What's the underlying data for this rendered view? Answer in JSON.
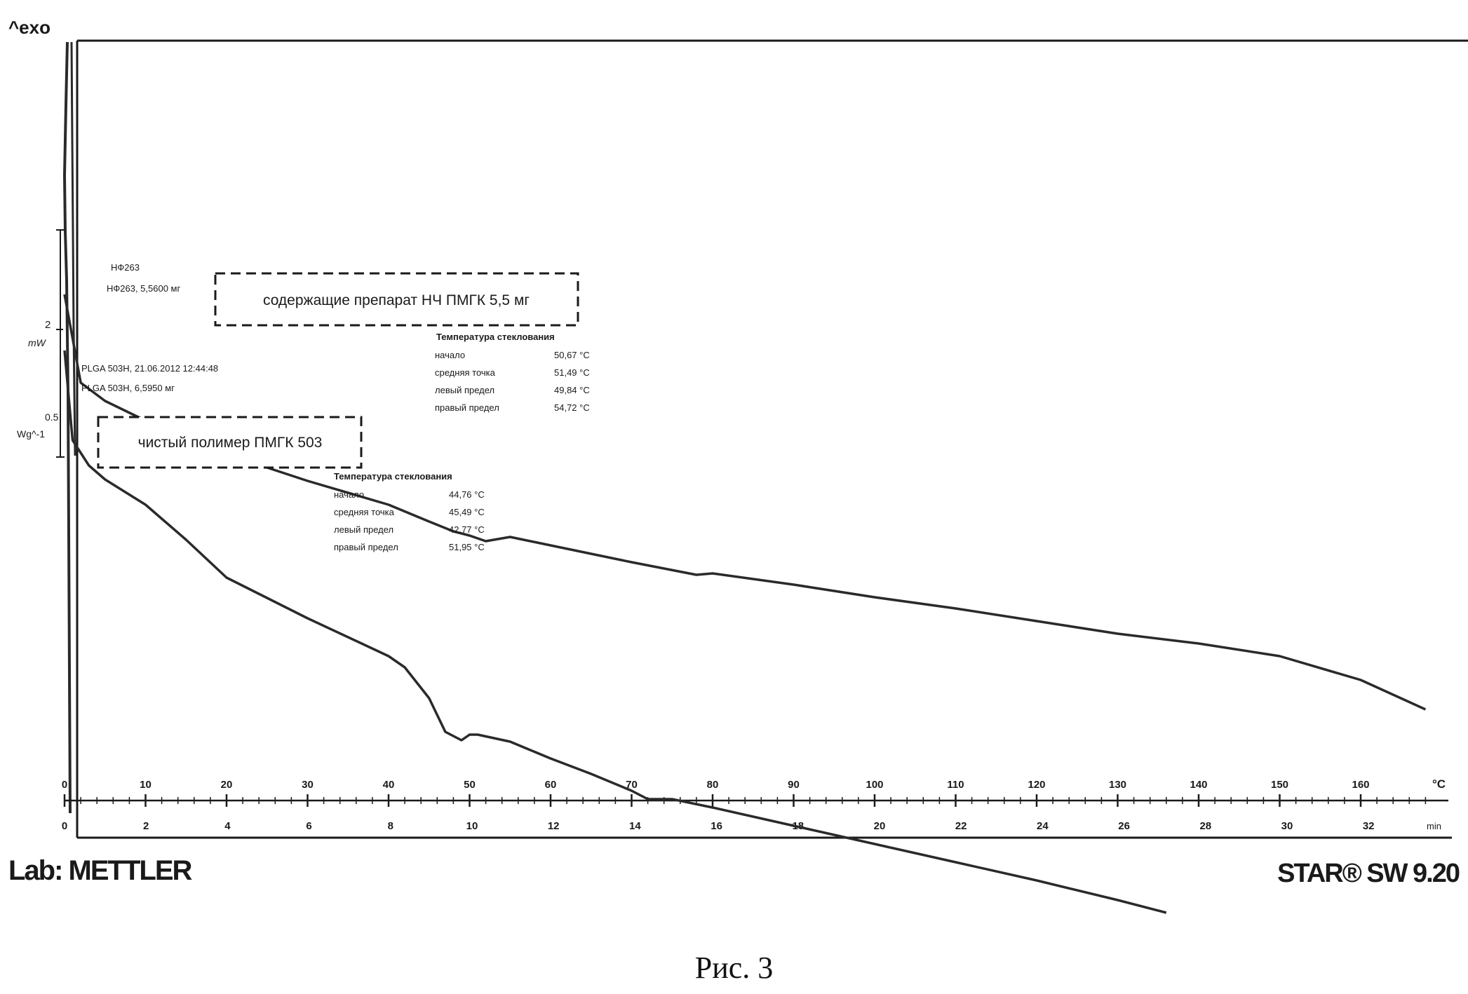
{
  "header": {
    "exo_label": "^exo"
  },
  "chart_data": {
    "type": "line",
    "xlabel_top_unit": "°C",
    "xlabel_bottom_unit": "min",
    "x_temp_ticks": [
      0,
      10,
      20,
      30,
      40,
      50,
      60,
      70,
      80,
      90,
      100,
      110,
      120,
      130,
      140,
      150,
      160
    ],
    "x_time_ticks": [
      0,
      2,
      4,
      6,
      8,
      10,
      12,
      14,
      16,
      18,
      20,
      22,
      24,
      26,
      28,
      30,
      32
    ],
    "xlim_temp": [
      0,
      168
    ],
    "y_scale_labels": {
      "top_value": "2",
      "top_unit": "mW",
      "bottom_value": "0.5",
      "bottom_unit": "Wg^-1"
    },
    "series": [
      {
        "name": "содержащие препарат НЧ ПМГК 5,5 мг",
        "x": [
          0,
          2,
          5,
          10,
          15,
          20,
          30,
          40,
          45,
          48,
          50,
          52,
          55,
          60,
          70,
          78,
          80,
          90,
          100,
          110,
          120,
          130,
          140,
          150,
          160,
          168
        ],
        "y": [
          -100,
          -163,
          -176,
          -190,
          -203,
          -214,
          -233,
          -250,
          -262,
          -269,
          -272,
          -276,
          -273,
          -279,
          -291,
          -300,
          -299,
          -307,
          -316,
          -324,
          -333,
          -342,
          -349,
          -358,
          -375,
          -396
        ]
      },
      {
        "name": "чистый полимер ПМГК 503",
        "x": [
          0,
          1,
          3,
          5,
          10,
          15,
          20,
          30,
          40,
          42,
          45,
          47,
          49,
          50,
          51,
          55,
          60,
          65,
          70,
          72,
          75,
          80,
          90,
          100,
          110,
          120,
          130,
          136
        ],
        "y": [
          -140,
          -204,
          -222,
          -232,
          -250,
          -275,
          -302,
          -331,
          -358,
          -366,
          -388,
          -412,
          -418,
          -414,
          -414,
          -419,
          -431,
          -442,
          -454,
          -460,
          -460,
          -466,
          -479,
          -492,
          -505,
          -518,
          -532,
          -541
        ]
      }
    ],
    "annotations": [
      {
        "header_lines": [
          "НФ263",
          "НФ263, 5,5600 мг"
        ],
        "title": "Температура стеклования",
        "rows": [
          {
            "label": "начало",
            "value": "50,67 °C"
          },
          {
            "label": "средняя точка",
            "value": "51,49 °C"
          },
          {
            "label": "левый предел",
            "value": "49,84 °C"
          },
          {
            "label": "правый предел",
            "value": "54,72 °C"
          }
        ]
      },
      {
        "header_lines": [
          "PLGA 503H, 21.06.2012 12:44:48",
          "PLGA 503H, 6,5950 мг"
        ],
        "title": "Температура стеклования",
        "rows": [
          {
            "label": "начало",
            "value": "44,76 °C"
          },
          {
            "label": "средняя точка",
            "value": "45,49 °C"
          },
          {
            "label": "левый предел",
            "value": "42,77 °C"
          },
          {
            "label": "правый предел",
            "value": "51,95 °C"
          }
        ]
      }
    ]
  },
  "footer": {
    "lab": "Lab: METTLER",
    "software": "STAR® SW 9.20"
  },
  "caption": "Рис. 3"
}
